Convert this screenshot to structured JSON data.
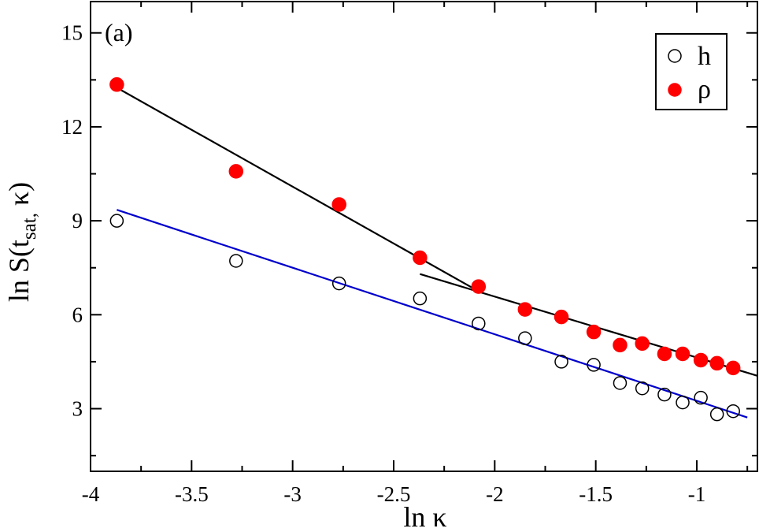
{
  "chart_data": {
    "type": "scatter",
    "panel_label": "(a)",
    "xlabel": "ln κ",
    "ylabel_main": "ln S(t",
    "ylabel_sub": "sat,",
    "ylabel_end": " κ)",
    "xlim": [
      -4,
      -0.7
    ],
    "ylim": [
      1.0,
      16.0
    ],
    "xticks": [
      -4,
      -3.5,
      -3,
      -2.5,
      -2,
      -1.5,
      -1
    ],
    "xtick_labels": [
      "-4",
      "-3.5",
      "-3",
      "-2.5",
      "-2",
      "-1.5",
      "-1"
    ],
    "yticks": [
      3,
      6,
      9,
      12,
      15
    ],
    "ytick_labels": [
      "3",
      "6",
      "9",
      "12",
      "15"
    ],
    "legend_position": "top-right",
    "series": [
      {
        "name": "h",
        "marker": "open-circle",
        "color": "#000000",
        "x": [
          -3.87,
          -3.28,
          -2.77,
          -2.37,
          -2.08,
          -1.85,
          -1.67,
          -1.51,
          -1.38,
          -1.27,
          -1.16,
          -1.07,
          -0.98,
          -0.9,
          -0.82
        ],
        "y": [
          9.0,
          7.72,
          7.0,
          6.52,
          5.72,
          5.25,
          4.5,
          4.4,
          3.82,
          3.65,
          3.45,
          3.2,
          3.35,
          2.82,
          2.92
        ]
      },
      {
        "name": "ρ",
        "marker": "filled-circle",
        "color": "#ff0000",
        "x": [
          -3.87,
          -3.28,
          -2.77,
          -2.37,
          -2.08,
          -1.85,
          -1.67,
          -1.51,
          -1.38,
          -1.27,
          -1.16,
          -1.07,
          -0.98,
          -0.9,
          -0.82
        ],
        "y": [
          13.35,
          10.58,
          9.52,
          7.82,
          6.9,
          6.17,
          5.93,
          5.45,
          5.03,
          5.08,
          4.75,
          4.75,
          4.55,
          4.45,
          4.3
        ]
      }
    ],
    "fit_lines": [
      {
        "color": "#000000",
        "x": [
          -3.87,
          -2.08
        ],
        "y": [
          13.25,
          6.75
        ]
      },
      {
        "color": "#000000",
        "x": [
          -2.37,
          -0.7
        ],
        "y": [
          7.3,
          4.05
        ]
      },
      {
        "color": "#0000cc",
        "x": [
          -3.87,
          -0.75
        ],
        "y": [
          9.35,
          2.72
        ]
      }
    ]
  }
}
